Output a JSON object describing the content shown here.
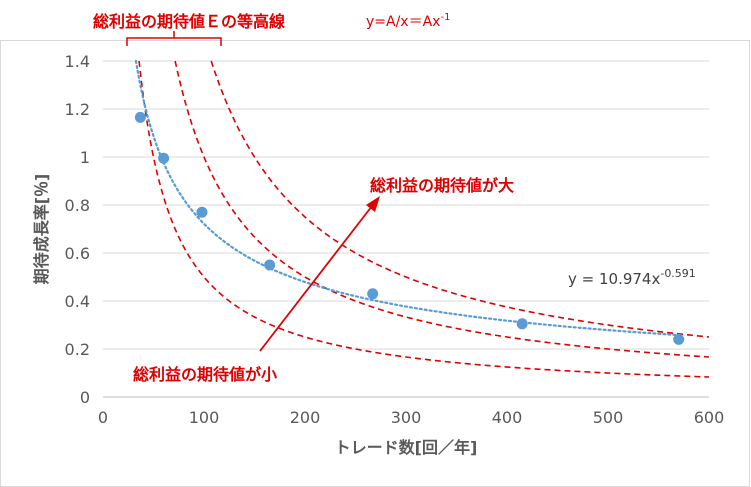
{
  "chart_data": {
    "type": "scatter",
    "title": "総利益の期待値Ｅの等高線",
    "title_formula_base": "y=A/x＝Ax",
    "title_formula_exp": "-1",
    "xlabel": "トレード数[回／年]",
    "ylabel": "期待成長率[％]",
    "xlim": [
      0,
      600
    ],
    "ylim": [
      0,
      1.4
    ],
    "x_ticks": [
      0,
      100,
      200,
      300,
      400,
      500,
      600
    ],
    "y_ticks": [
      0,
      0.2,
      0.4,
      0.6,
      0.8,
      1,
      1.2,
      1.4
    ],
    "x_tick_labels": [
      "0",
      "100",
      "200",
      "300",
      "400",
      "500",
      "600"
    ],
    "y_tick_labels": [
      "0",
      "0.2",
      "0.4",
      "0.6",
      "0.8",
      "1",
      "1.2",
      "1.4"
    ],
    "grid": "horizontal",
    "legend": "none",
    "series": [
      {
        "kind": "points",
        "color": "#5b9bd5",
        "x": [
          37,
          60,
          98,
          165,
          267,
          415,
          570
        ],
        "y": [
          1.165,
          0.995,
          0.77,
          0.55,
          0.43,
          0.305,
          0.24
        ]
      }
    ],
    "trendline": {
      "type": "power",
      "coef": 10.974,
      "exp": -0.591,
      "color": "#5b9bd5",
      "label_base": "y = 10.974x",
      "label_exp": "-0.591"
    },
    "contours": [
      {
        "A": 50,
        "color": "#e00000"
      },
      {
        "A": 100,
        "color": "#e00000"
      },
      {
        "A": 150,
        "color": "#e00000"
      }
    ],
    "annotations": {
      "large": "総利益の期待値が大",
      "small": "総利益の期待値が小"
    },
    "colors": {
      "annotation": "#e00000",
      "grid": "#d9d9d9",
      "axis_text": "#595959"
    }
  }
}
